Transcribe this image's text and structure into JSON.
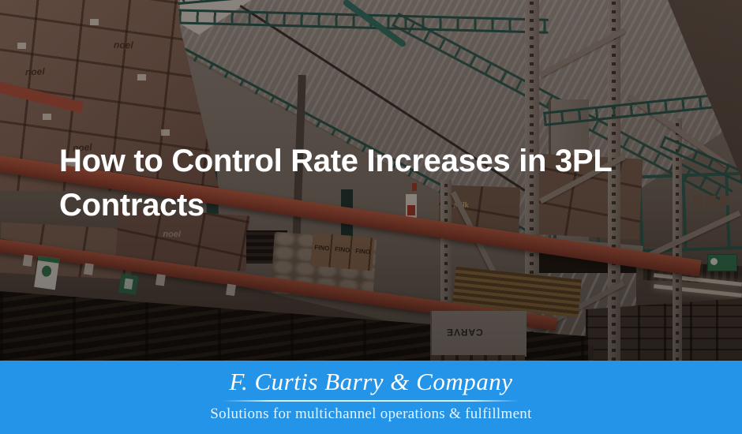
{
  "hero": {
    "title": "How to Control Rate Increases in 3PL Contracts",
    "title_lines": [
      "How to Control Rate Increases in 3PL",
      "Contracts"
    ],
    "title_color": "#ffffff"
  },
  "footer": {
    "company_name": "F. Curtis Barry & Company",
    "tagline": "Solutions for multichannel operations & fulfillment",
    "background_color": "#2394e8",
    "text_color": "#ffffff"
  },
  "photo": {
    "alt": "warehouse interior with pallet racking, cardboard boxes, sacks, pallets and corrugated roof",
    "box_labels": [
      "noel",
      "FINO",
      "Milk",
      "CARVE"
    ],
    "colors": {
      "overlay": "rgba(26,16,12,0.42)",
      "beam_orange": "#9c4532",
      "truss_teal": "#1f5048",
      "cardboard": "#7c6153",
      "roof_gray": "#8b837c"
    }
  }
}
